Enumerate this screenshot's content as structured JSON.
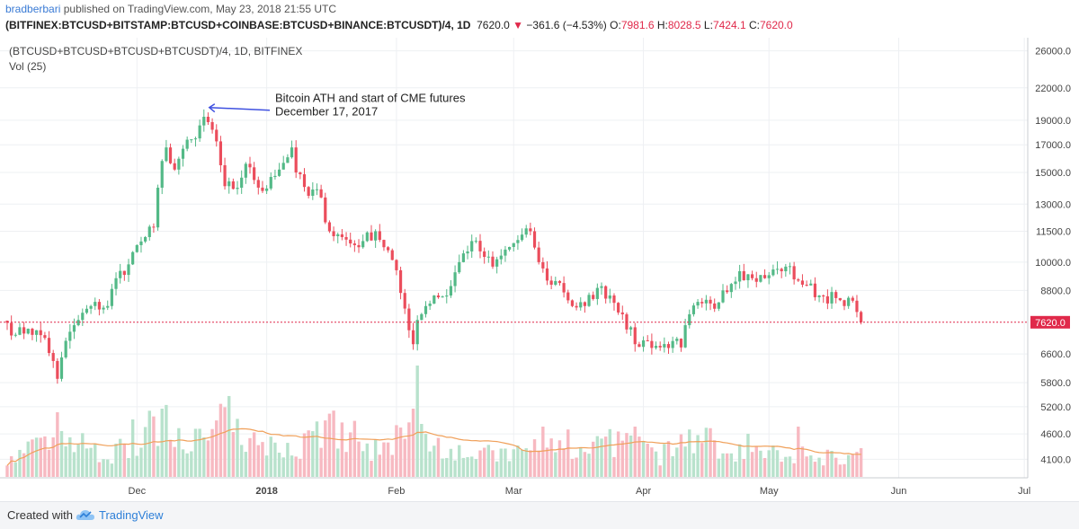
{
  "header": {
    "author": "bradberbari",
    "published_text": "published on TradingView.com, May 23, 2018 21:55 UTC",
    "symbol": "(BITFINEX:BTCUSD+BITSTAMP:BTCUSD+COINBASE:BTCUSD+BINANCE:BTCUSDT)/4, 1D",
    "last": "7620.0",
    "change": "−361.6 (−4.53%)",
    "o_label": "O:",
    "o_value": "7981.6",
    "h_label": "H:",
    "h_value": "8028.5",
    "l_label": "L:",
    "l_value": "7424.1",
    "c_label": "C:",
    "c_value": "7620.0"
  },
  "footer": {
    "created_with": "Created with",
    "brand": "TradingView"
  },
  "colors": {
    "up": "#53b987",
    "down": "#eb4d5c",
    "volume_ma": "#f0a05a",
    "price_line": "#e0294a",
    "arrow": "#3f51e0"
  },
  "chart_data": {
    "type": "candlestick",
    "title": "(BTCUSD+BTCUSD+BTCUSD+BTCUSDT)/4, 1D, BITFINEX",
    "volume_label": "Vol (25)",
    "y_ticks": [
      "26000.0",
      "22000.0",
      "19000.0",
      "17000.0",
      "15000.0",
      "13000.0",
      "11500.0",
      "10000.0",
      "8800.0",
      "7620.0",
      "6600.0",
      "5800.0",
      "5200.0",
      "4600.0",
      "4100.0"
    ],
    "y_tick_values": [
      26000,
      22000,
      19000,
      17000,
      15000,
      13000,
      11500,
      10000,
      8800,
      7620,
      6600,
      5800,
      5200,
      4600,
      4100
    ],
    "log_scale": true,
    "x_ticks": [
      "Dec",
      "2018",
      "Feb",
      "Mar",
      "Apr",
      "May",
      "Jun",
      "Jul"
    ],
    "x_tick_dates": [
      "2017-12-01",
      "2018-01-01",
      "2018-02-01",
      "2018-03-01",
      "2018-04-01",
      "2018-05-01",
      "2018-06-01",
      "2018-07-01"
    ],
    "last_price": 7620.0,
    "last_price_label": "7620.0",
    "annotation": {
      "line1": "Bitcoin ATH and start of CME futures",
      "line2": "December 17, 2017",
      "date": "2017-12-17",
      "price": 19400
    },
    "close_anchors": [
      [
        "2017-10-31",
        7600
      ],
      [
        "2017-11-02",
        7200
      ],
      [
        "2017-11-05",
        7400
      ],
      [
        "2017-11-09",
        7100
      ],
      [
        "2017-11-12",
        5900
      ],
      [
        "2017-11-13",
        6500
      ],
      [
        "2017-11-15",
        7300
      ],
      [
        "2017-11-17",
        7700
      ],
      [
        "2017-11-20",
        8200
      ],
      [
        "2017-11-24",
        8200
      ],
      [
        "2017-11-26",
        9300
      ],
      [
        "2017-11-29",
        9900
      ],
      [
        "2017-12-01",
        10800
      ],
      [
        "2017-12-03",
        11200
      ],
      [
        "2017-12-05",
        11700
      ],
      [
        "2017-12-07",
        15800
      ],
      [
        "2017-12-08",
        16800
      ],
      [
        "2017-12-10",
        15200
      ],
      [
        "2017-12-12",
        16700
      ],
      [
        "2017-12-15",
        17500
      ],
      [
        "2017-12-17",
        19300
      ],
      [
        "2017-12-19",
        18200
      ],
      [
        "2017-12-21",
        15500
      ],
      [
        "2017-12-22",
        14100
      ],
      [
        "2017-12-25",
        14000
      ],
      [
        "2017-12-27",
        15600
      ],
      [
        "2017-12-29",
        14500
      ],
      [
        "2017-12-31",
        13800
      ],
      [
        "2018-01-02",
        14700
      ],
      [
        "2018-01-04",
        15200
      ],
      [
        "2018-01-07",
        16800
      ],
      [
        "2018-01-08",
        15000
      ],
      [
        "2018-01-11",
        13500
      ],
      [
        "2018-01-13",
        13900
      ],
      [
        "2018-01-16",
        11500
      ],
      [
        "2018-01-19",
        11200
      ],
      [
        "2018-01-22",
        10800
      ],
      [
        "2018-01-24",
        11000
      ],
      [
        "2018-01-27",
        11500
      ],
      [
        "2018-01-31",
        10100
      ],
      [
        "2018-02-02",
        8700
      ],
      [
        "2018-02-05",
        6900
      ],
      [
        "2018-02-06",
        7700
      ],
      [
        "2018-02-08",
        8200
      ],
      [
        "2018-02-10",
        8600
      ],
      [
        "2018-02-13",
        8600
      ],
      [
        "2018-02-16",
        10000
      ],
      [
        "2018-02-19",
        11000
      ],
      [
        "2018-02-21",
        10500
      ],
      [
        "2018-02-24",
        9800
      ],
      [
        "2018-02-26",
        10300
      ],
      [
        "2018-03-01",
        10900
      ],
      [
        "2018-03-05",
        11500
      ],
      [
        "2018-03-07",
        10000
      ],
      [
        "2018-03-09",
        9200
      ],
      [
        "2018-03-12",
        9100
      ],
      [
        "2018-03-15",
        8200
      ],
      [
        "2018-03-18",
        8200
      ],
      [
        "2018-03-21",
        8900
      ],
      [
        "2018-03-24",
        8600
      ],
      [
        "2018-03-27",
        7900
      ],
      [
        "2018-03-30",
        6900
      ],
      [
        "2018-04-02",
        7000
      ],
      [
        "2018-04-05",
        6800
      ],
      [
        "2018-04-08",
        7000
      ],
      [
        "2018-04-10",
        6800
      ],
      [
        "2018-04-12",
        7900
      ],
      [
        "2018-04-15",
        8300
      ],
      [
        "2018-04-18",
        8100
      ],
      [
        "2018-04-20",
        8800
      ],
      [
        "2018-04-24",
        9600
      ],
      [
        "2018-04-27",
        9300
      ],
      [
        "2018-04-30",
        9300
      ],
      [
        "2018-05-03",
        9700
      ],
      [
        "2018-05-05",
        9800
      ],
      [
        "2018-05-08",
        9200
      ],
      [
        "2018-05-10",
        9000
      ],
      [
        "2018-05-13",
        8600
      ],
      [
        "2018-05-17",
        8500
      ],
      [
        "2018-05-19",
        8200
      ],
      [
        "2018-05-21",
        8400
      ],
      [
        "2018-05-22",
        7982
      ],
      [
        "2018-05-23",
        7620
      ]
    ],
    "volume_anchors": [
      [
        "2017-10-31",
        0.22
      ],
      [
        "2017-11-12",
        0.55
      ],
      [
        "2017-11-25",
        0.3
      ],
      [
        "2017-12-07",
        0.75
      ],
      [
        "2017-12-12",
        0.62
      ],
      [
        "2017-12-17",
        0.48
      ],
      [
        "2017-12-22",
        0.85
      ],
      [
        "2017-12-29",
        0.42
      ],
      [
        "2018-01-08",
        0.4
      ],
      [
        "2018-01-16",
        0.78
      ],
      [
        "2018-01-24",
        0.3
      ],
      [
        "2018-02-01",
        0.55
      ],
      [
        "2018-02-06",
        0.65
      ],
      [
        "2018-02-10",
        0.5
      ],
      [
        "2018-02-20",
        0.32
      ],
      [
        "2018-03-01",
        0.3
      ],
      [
        "2018-03-08",
        0.5
      ],
      [
        "2018-03-15",
        0.42
      ],
      [
        "2018-03-30",
        0.5
      ],
      [
        "2018-04-05",
        0.28
      ],
      [
        "2018-04-12",
        0.55
      ],
      [
        "2018-04-25",
        0.35
      ],
      [
        "2018-05-05",
        0.3
      ],
      [
        "2018-05-15",
        0.28
      ],
      [
        "2018-05-23",
        0.26
      ]
    ],
    "volume_spikes": [
      [
        "2017-11-12",
        0.9
      ],
      [
        "2017-11-30",
        0.8
      ],
      [
        "2017-12-07",
        0.95
      ],
      [
        "2017-12-22",
        0.97
      ],
      [
        "2017-12-29",
        0.62
      ],
      [
        "2018-01-16",
        0.88
      ],
      [
        "2018-01-22",
        0.78
      ],
      [
        "2018-02-01",
        0.72
      ],
      [
        "2018-02-05",
        0.95
      ],
      [
        "2018-02-06",
        1.55
      ],
      [
        "2018-03-08",
        0.7
      ],
      [
        "2018-03-14",
        0.66
      ],
      [
        "2018-03-30",
        0.7
      ],
      [
        "2018-04-12",
        0.66
      ],
      [
        "2018-04-26",
        0.6
      ],
      [
        "2018-05-08",
        0.7
      ],
      [
        "2018-05-23",
        0.4
      ]
    ],
    "volume_ma_level": 0.45
  }
}
